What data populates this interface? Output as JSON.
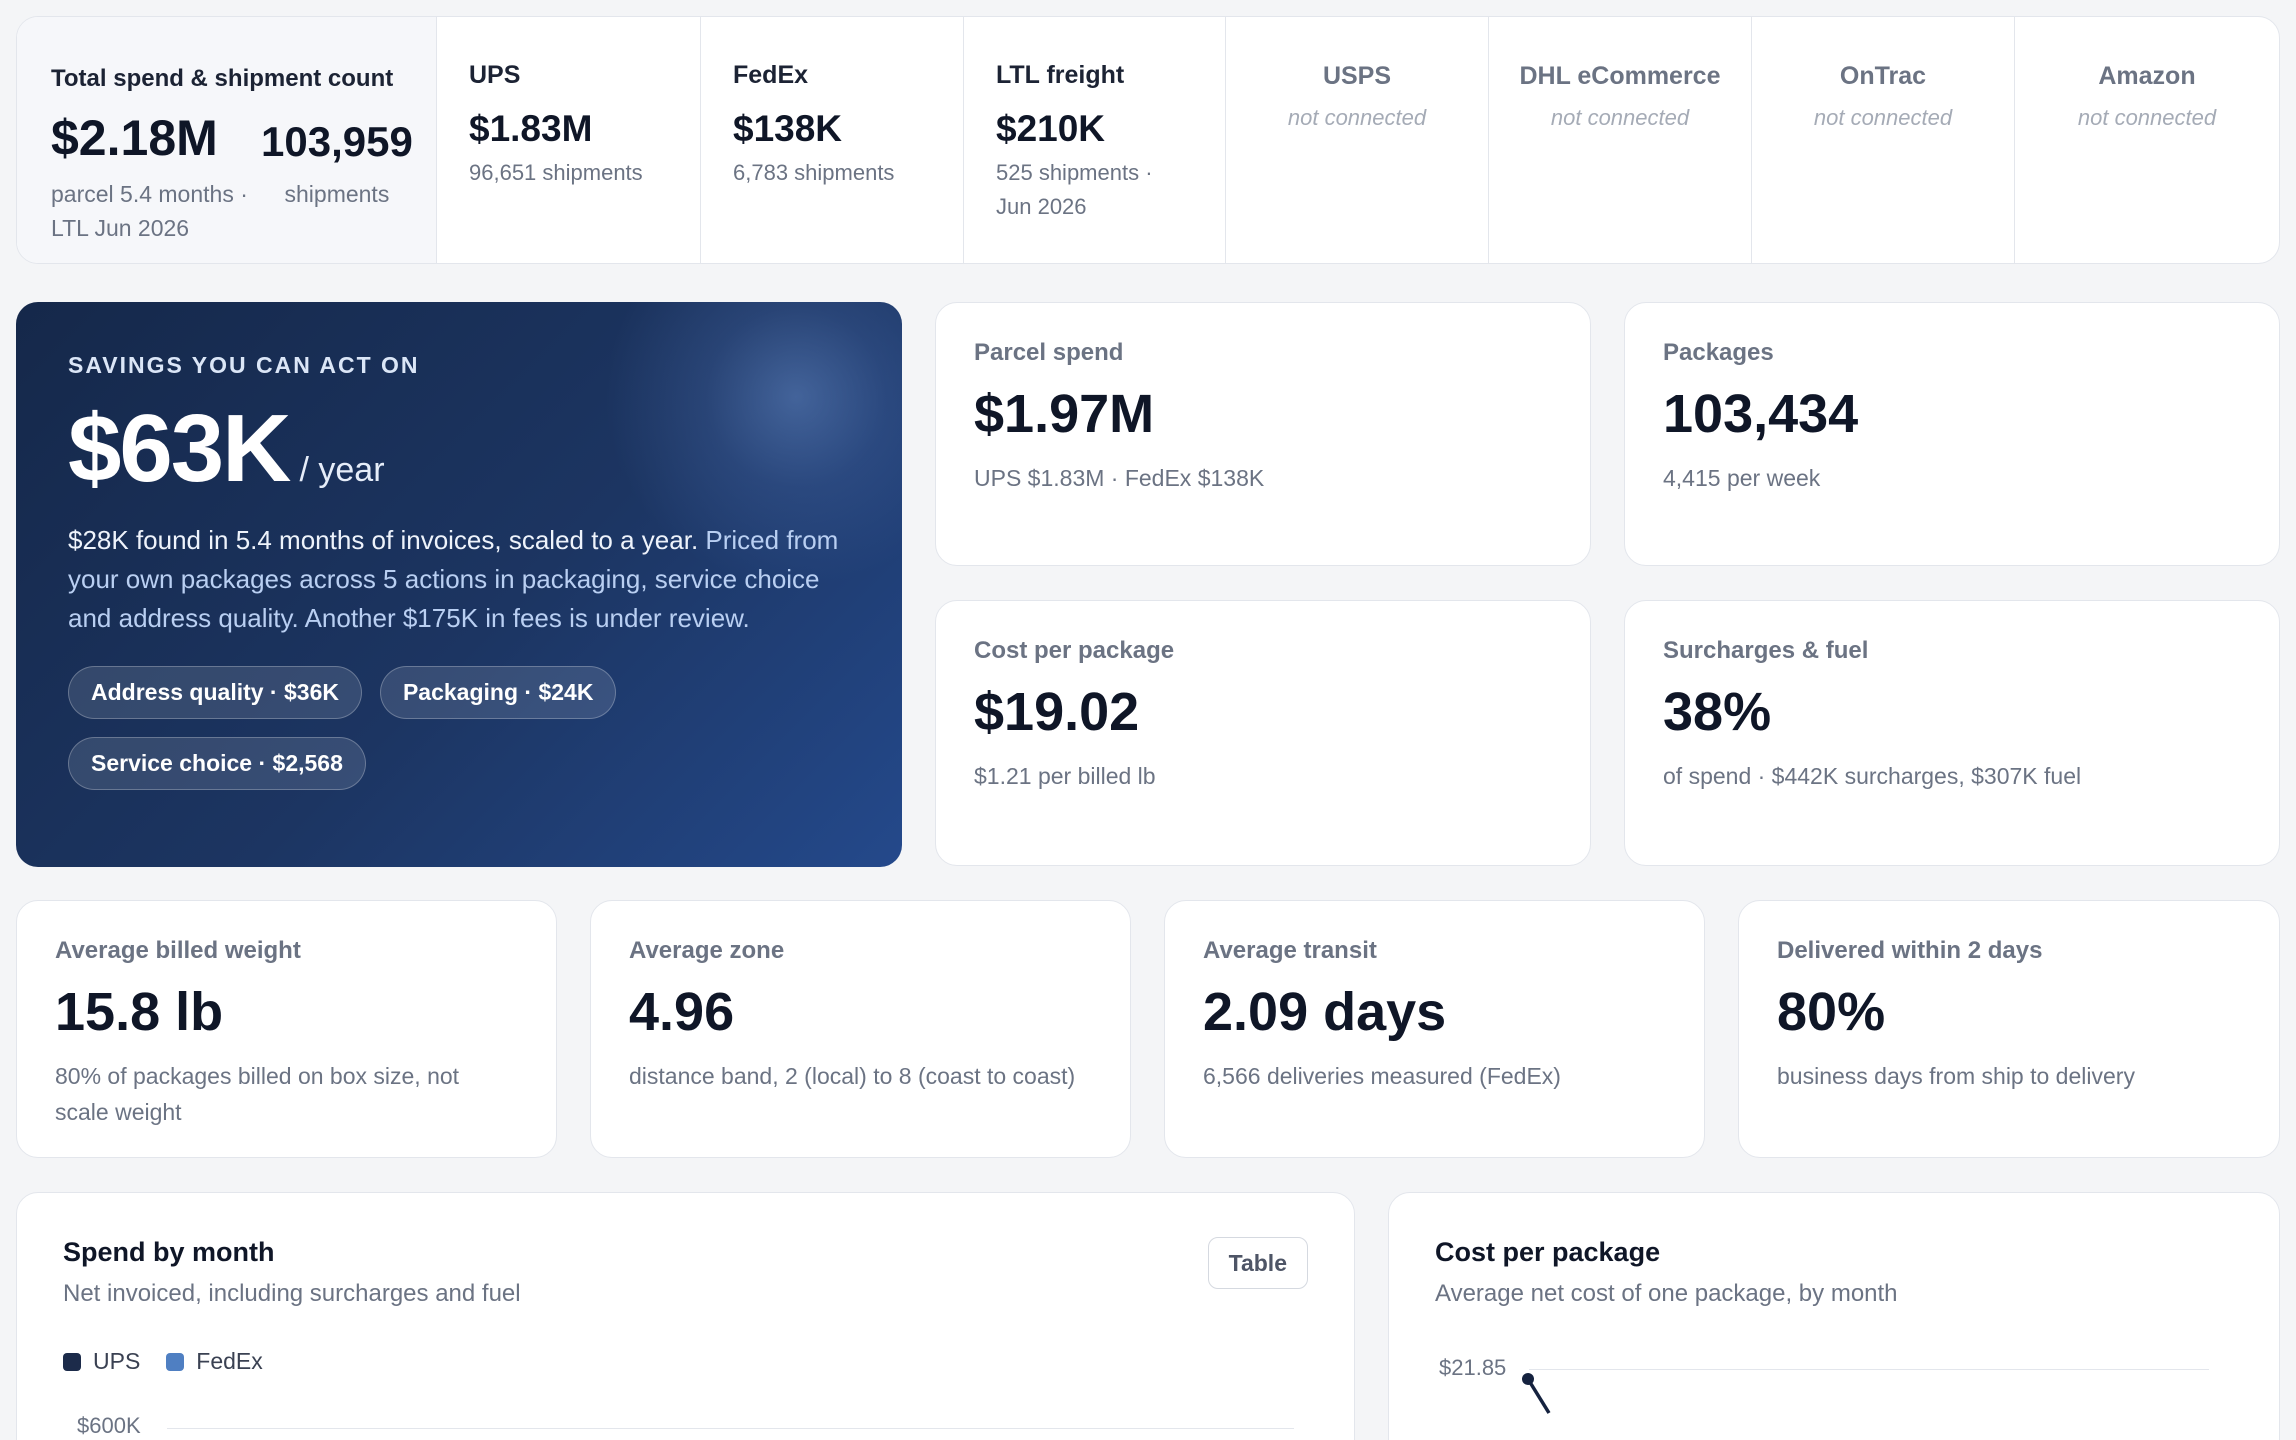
{
  "carriers_summary": {
    "total": {
      "label": "Total spend & shipment count",
      "spend": "$2.18M",
      "spend_note": "parcel 5.4 months · LTL Jun 2026",
      "shipments": "103,959",
      "shipments_label": "shipments"
    },
    "connected": [
      {
        "name": "UPS",
        "spend": "$1.83M",
        "meta": "96,651 shipments"
      },
      {
        "name": "FedEx",
        "spend": "$138K",
        "meta": "6,783 shipments"
      },
      {
        "name": "LTL freight",
        "spend": "$210K",
        "meta": "525 shipments · Jun 2026"
      }
    ],
    "not_connected": [
      {
        "name": "USPS",
        "status": "not connected"
      },
      {
        "name": "DHL eCommerce",
        "status": "not connected"
      },
      {
        "name": "OnTrac",
        "status": "not connected"
      },
      {
        "name": "Amazon",
        "status": "not connected"
      }
    ]
  },
  "savings": {
    "eyebrow": "SAVINGS YOU CAN ACT ON",
    "amount": "$63K",
    "period": "/ year",
    "description": "$28K found in 5.4 months of invoices, scaled to a year.",
    "description_highlight": "Priced from your own packages across 5 actions in packaging, service choice and address quality. Another $175K in fees is under review.",
    "chips": [
      {
        "label": "Address quality · $36K"
      },
      {
        "label": "Packaging · $24K"
      },
      {
        "label": "Service choice · $2,568"
      }
    ]
  },
  "kpis": {
    "parcel_spend": {
      "label": "Parcel spend",
      "value": "$1.97M",
      "sub": "UPS $1.83M · FedEx $138K"
    },
    "packages": {
      "label": "Packages",
      "value": "103,434",
      "sub": "4,415 per week"
    },
    "cost_per_package": {
      "label": "Cost per package",
      "value": "$19.02",
      "sub": "$1.21 per billed lb"
    },
    "surcharges": {
      "label": "Surcharges & fuel",
      "value": "38%",
      "sub": "of spend · $442K surcharges, $307K fuel"
    },
    "billed_weight": {
      "label": "Average billed weight",
      "value": "15.8 lb",
      "sub": "80% of packages billed on box size, not scale weight"
    },
    "zone": {
      "label": "Average zone",
      "value": "4.96",
      "sub": "distance band, 2 (local) to 8 (coast to coast)"
    },
    "transit": {
      "label": "Average transit",
      "value": "2.09 days",
      "sub": "6,566 deliveries measured (FedEx)"
    },
    "within_2_days": {
      "label": "Delivered within 2 days",
      "value": "80%",
      "sub": "business days from ship to delivery"
    }
  },
  "charts": {
    "spend_by_month": {
      "title": "Spend by month",
      "subtitle": "Net invoiced, including surcharges and fuel",
      "table_button": "Table",
      "legend": [
        {
          "name": "UPS",
          "color": "#1c2b4a"
        },
        {
          "name": "FedEx",
          "color": "#4f7fc2"
        }
      ],
      "top_tick": "$600K"
    },
    "cost_per_package": {
      "title": "Cost per package",
      "subtitle": "Average net cost of one package, by month",
      "top_tick": "$21.85"
    }
  },
  "colors": {
    "accent_dark": "#15284a",
    "accent_blue": "#4f7fc2",
    "muted": "#6b7383",
    "card_border": "#e3e6ec"
  }
}
